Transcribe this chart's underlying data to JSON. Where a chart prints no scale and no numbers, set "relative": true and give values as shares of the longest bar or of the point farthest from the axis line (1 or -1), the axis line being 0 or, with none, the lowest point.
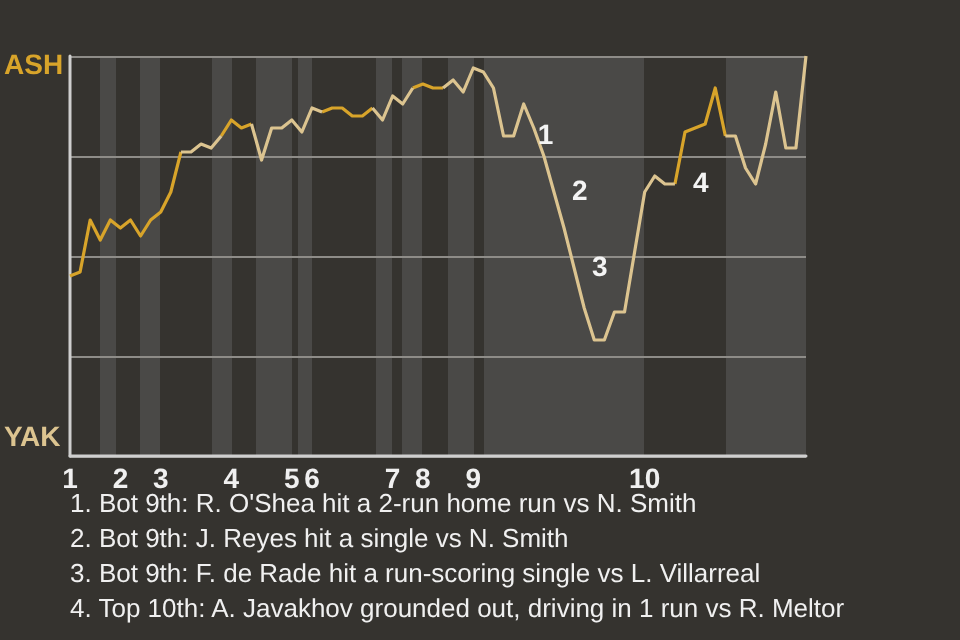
{
  "chart_data": {
    "type": "line",
    "relative": true,
    "grid": "y",
    "categories": [
      "1",
      null,
      null,
      null,
      null,
      "2",
      null,
      null,
      null,
      "3",
      null,
      null,
      null,
      null,
      null,
      null,
      "4",
      null,
      null,
      null,
      null,
      null,
      "5",
      null,
      "6",
      null,
      null,
      null,
      null,
      null,
      null,
      null,
      "7",
      null,
      null,
      "8",
      null,
      null,
      null,
      null,
      "9",
      null,
      null,
      null,
      null,
      null,
      null,
      null,
      null,
      null,
      null,
      null,
      null,
      null,
      null,
      null,
      null,
      "10",
      null,
      null,
      null,
      null,
      null,
      null,
      null,
      null,
      null,
      null,
      null,
      null,
      null,
      null,
      null,
      null
    ],
    "series": [
      {
        "color": "#d8a42a",
        "values": [
          0.45,
          0.46,
          0.59,
          0.54,
          0.59,
          0.57,
          0.59,
          0.55,
          0.59,
          0.61,
          0.66,
          0.76,
          null,
          null,
          null,
          0.8,
          0.84,
          0.82,
          0.83,
          null,
          null,
          null,
          null,
          null,
          null,
          0.86,
          0.87,
          0.87,
          0.85,
          0.85,
          0.87,
          null,
          null,
          null,
          0.92,
          0.93,
          0.92,
          0.92,
          null,
          null,
          null,
          null,
          null,
          null,
          null,
          null,
          null,
          null,
          null,
          null,
          null,
          null,
          null,
          null,
          null,
          null,
          null,
          null,
          null,
          null,
          0.68,
          0.81,
          0.82,
          0.83,
          0.92,
          0.8,
          null,
          null,
          null,
          null,
          null,
          null,
          null,
          null
        ],
        "name": null
      },
      {
        "color": "#dcc490",
        "values": [
          null,
          null,
          null,
          null,
          null,
          null,
          null,
          null,
          null,
          null,
          null,
          0.76,
          0.76,
          0.78,
          0.77,
          0.8,
          null,
          null,
          0.83,
          0.74,
          0.82,
          0.82,
          0.84,
          0.81,
          0.87,
          0.86,
          null,
          null,
          null,
          null,
          0.87,
          0.84,
          0.9,
          0.88,
          0.92,
          null,
          null,
          0.92,
          0.94,
          0.91,
          0.97,
          0.96,
          0.92,
          0.8,
          0.8,
          0.88,
          0.82,
          0.75,
          0.66,
          0.57,
          0.47,
          0.37,
          0.29,
          0.29,
          0.36,
          0.36,
          0.51,
          0.66,
          0.7,
          0.68,
          0.68,
          null,
          null,
          null,
          null,
          0.8,
          0.8,
          0.72,
          0.68,
          0.78,
          0.91,
          0.77,
          0.77,
          1
        ],
        "name": null
      }
    ],
    "annotations": [
      "ASH",
      "YAK",
      "1",
      "2",
      "3",
      "4",
      "1. Bot 9th: R. O'Shea hit a 2-run home run vs N. Smith",
      "2. Bot 9th: J. Reyes hit a single vs N. Smith",
      "3. Bot 9th: F. de Rade hit a run-scoring single vs L. Villarreal",
      "4. Top 10th: A. Javakhov grounded out, driving in 1 run vs R. Meltor"
    ]
  }
}
